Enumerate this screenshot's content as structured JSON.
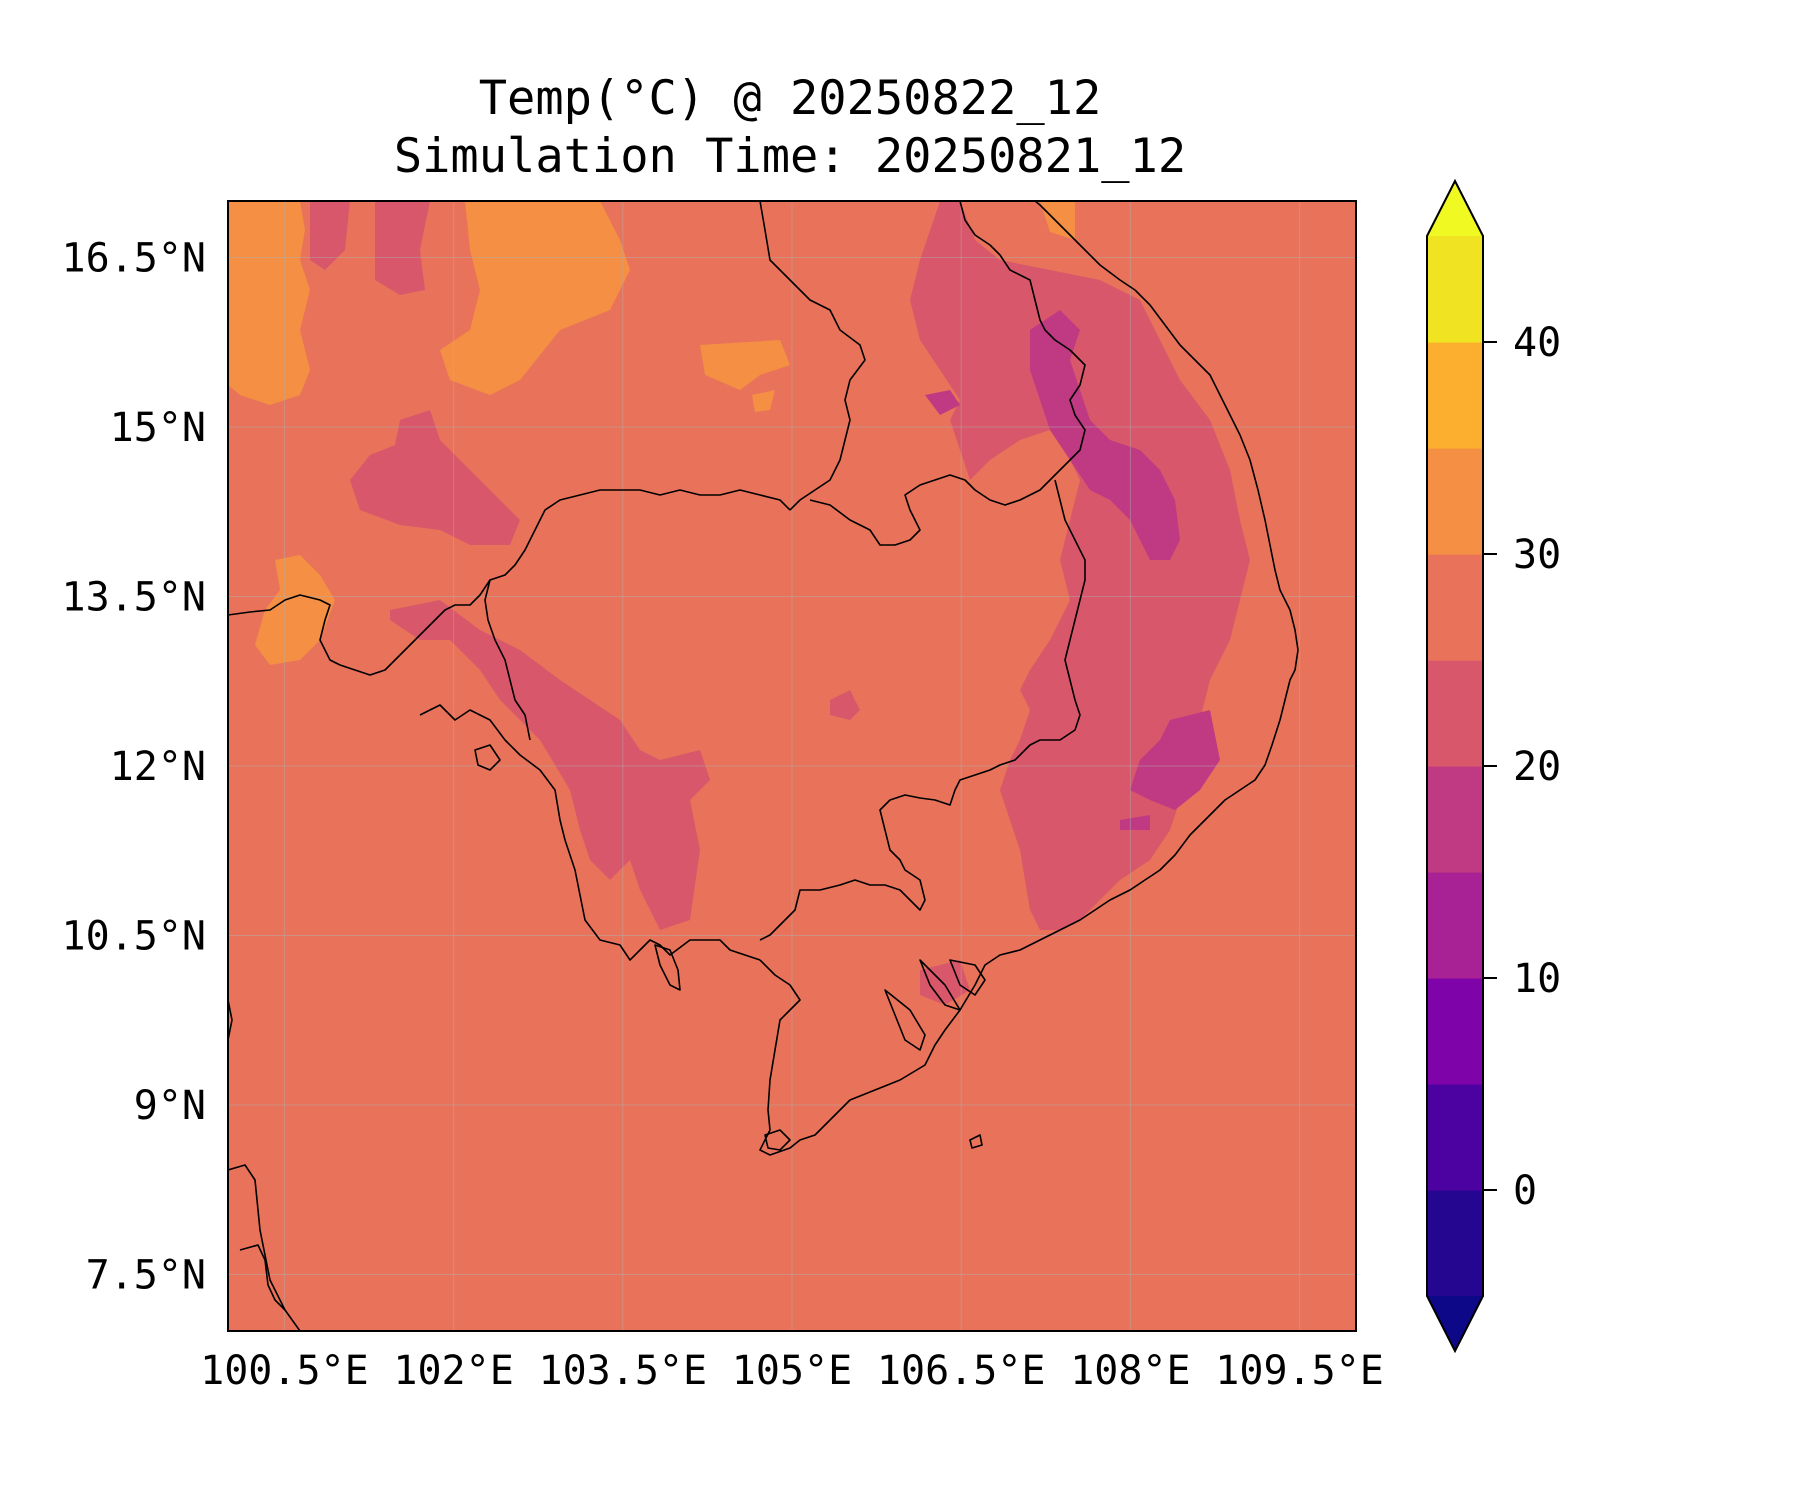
{
  "title": {
    "line1": "Temp(°C) @ 20250822_12",
    "line2": "Simulation Time: 20250821_12"
  },
  "map": {
    "region": "Cambodia / southern Indochina",
    "lon_range": [
      100.0,
      110.0
    ],
    "lat_range": [
      7.0,
      17.0
    ],
    "x_ticks": [
      "100.5°E",
      "102°E",
      "103.5°E",
      "105°E",
      "106.5°E",
      "108°E",
      "109.5°E"
    ],
    "y_ticks": [
      "16.5°N",
      "15°N",
      "13.5°N",
      "12°N",
      "10.5°N",
      "9°N",
      "7.5°N"
    ],
    "x_tick_values": [
      100.5,
      102,
      103.5,
      105,
      106.5,
      108,
      109.5
    ],
    "y_tick_values": [
      16.5,
      15,
      13.5,
      12,
      10.5,
      9,
      7.5
    ],
    "gridlines": true,
    "background_fill_color": "#e8735a"
  },
  "colorbar": {
    "tick_labels": [
      "40",
      "30",
      "20",
      "10",
      "0"
    ],
    "tick_values": [
      40,
      30,
      20,
      10,
      0
    ],
    "levels": [
      -5,
      0,
      5,
      10,
      15,
      20,
      25,
      30,
      35,
      40,
      45
    ],
    "colors": [
      "#240691",
      "#4c02a1",
      "#7e03a8",
      "#a82296",
      "#c03a83",
      "#d8576b",
      "#e8735a",
      "#f48f44",
      "#fcaf2e",
      "#f0e422"
    ],
    "extend_min_color": "#0d0887",
    "extend_max_color": "#f0f921",
    "extend": "both"
  }
}
